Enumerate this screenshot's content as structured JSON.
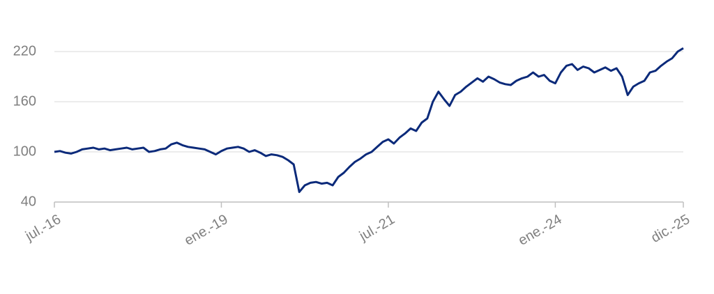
{
  "chart_data": {
    "type": "line",
    "categories": [
      "jul.-16",
      null,
      null,
      null,
      null,
      null,
      null,
      null,
      null,
      null,
      null,
      null,
      null,
      null,
      null,
      null,
      null,
      null,
      null,
      null,
      null,
      null,
      null,
      null,
      null,
      null,
      null,
      null,
      null,
      null,
      "ene.-19",
      null,
      null,
      null,
      null,
      null,
      null,
      null,
      null,
      null,
      null,
      null,
      null,
      null,
      null,
      null,
      null,
      null,
      null,
      null,
      null,
      null,
      null,
      null,
      null,
      null,
      null,
      null,
      null,
      null,
      "jul.-21",
      null,
      null,
      null,
      null,
      null,
      null,
      null,
      null,
      null,
      null,
      null,
      null,
      null,
      null,
      null,
      null,
      null,
      null,
      null,
      null,
      null,
      null,
      null,
      null,
      null,
      null,
      null,
      null,
      null,
      "ene.-24",
      null,
      null,
      null,
      null,
      null,
      null,
      null,
      null,
      null,
      null,
      null,
      null,
      null,
      null,
      null,
      null,
      null,
      null,
      null,
      null,
      null,
      null,
      "dic.-25"
    ],
    "values": [
      100,
      101,
      99,
      98,
      100,
      103,
      104,
      105,
      103,
      104,
      102,
      103,
      104,
      105,
      103,
      104,
      105,
      100,
      101,
      103,
      104,
      109,
      111,
      108,
      106,
      105,
      104,
      103,
      100,
      97,
      101,
      104,
      105,
      106,
      104,
      100,
      102,
      99,
      95,
      97,
      96,
      94,
      90,
      85,
      52,
      60,
      63,
      64,
      62,
      63,
      60,
      70,
      75,
      82,
      88,
      92,
      97,
      100,
      106,
      112,
      115,
      110,
      117,
      122,
      128,
      125,
      135,
      140,
      160,
      172,
      163,
      155,
      168,
      172,
      178,
      183,
      188,
      184,
      190,
      187,
      183,
      181,
      180,
      185,
      188,
      190,
      195,
      190,
      192,
      185,
      182,
      195,
      203,
      205,
      198,
      202,
      200,
      195,
      198,
      201,
      197,
      200,
      190,
      168,
      178,
      182,
      185,
      195,
      197,
      203,
      208,
      212,
      220,
      224
    ],
    "color": "#0b2a7a",
    "ylim": [
      40,
      220
    ],
    "yticks": [
      40,
      100,
      160,
      220
    ],
    "grid": true
  }
}
